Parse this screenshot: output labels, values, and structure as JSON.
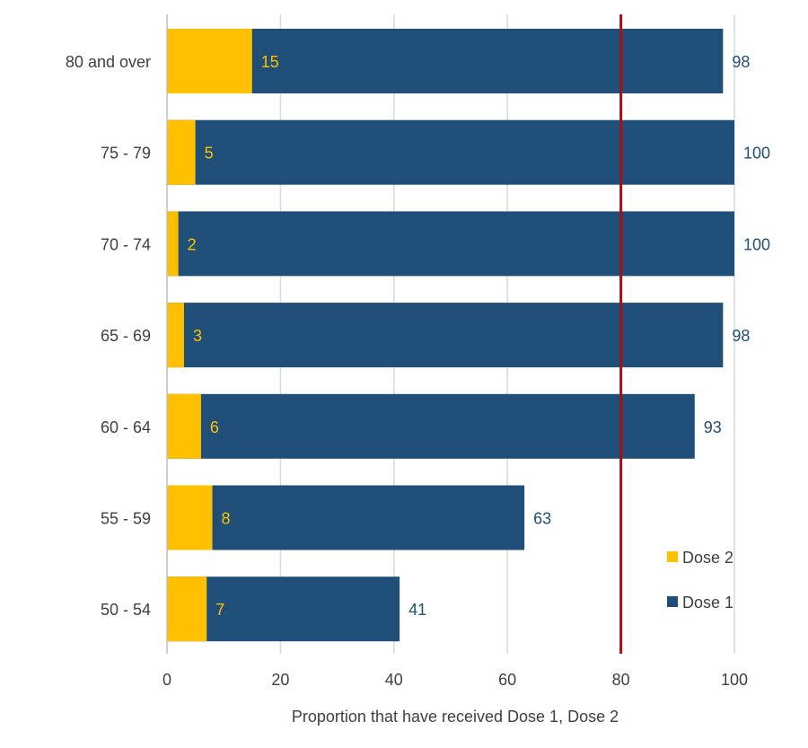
{
  "chart_data": {
    "type": "bar",
    "orientation": "horizontal",
    "categories": [
      "80 and over",
      "75 - 79",
      "70 - 74",
      "65 - 69",
      "60 - 64",
      "55 - 59",
      "50 - 54"
    ],
    "series": [
      {
        "name": "Dose 1",
        "values": [
          98,
          100,
          100,
          98,
          93,
          63,
          41
        ],
        "color": "#1f4e79"
      },
      {
        "name": "Dose 2",
        "values": [
          15,
          5,
          2,
          3,
          6,
          8,
          7
        ],
        "color": "#ffc000"
      }
    ],
    "x_ticks": [
      0,
      20,
      40,
      60,
      80,
      100
    ],
    "xlabel": "Proportion that have received Dose 1, Dose 2",
    "xlim": [
      0,
      100
    ],
    "reference_line": {
      "value": 80,
      "color": "#a50f15"
    },
    "grid": true,
    "legend": {
      "position": "bottom-right",
      "entries": [
        "Dose 2",
        "Dose 1"
      ]
    }
  }
}
